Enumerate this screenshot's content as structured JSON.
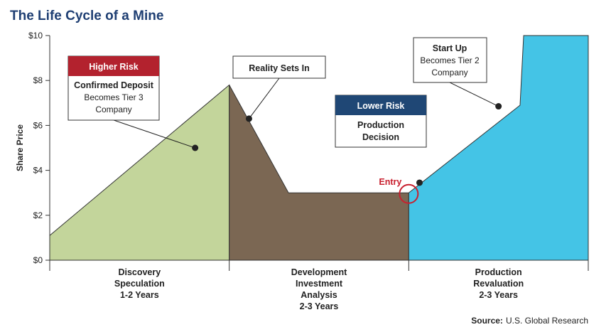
{
  "title": "The Life Cycle of a Mine",
  "source_label": "Source:",
  "source_text": "U.S. Global Research",
  "colors": {
    "title": "#1f3f73",
    "discovery": "#c3d59b",
    "development": "#7b6753",
    "production": "#44c4e6",
    "higher_risk": "#b3222e",
    "lower_risk": "#1f4775",
    "entry": "#c8202f"
  },
  "chart_data": {
    "type": "area",
    "title": "The Life Cycle of a Mine",
    "ylabel": "Share Price",
    "ylim": [
      0,
      10
    ],
    "yticks": [
      "$0",
      "$2",
      "$4",
      "$6",
      "$8",
      "$10"
    ],
    "grid": false,
    "phases": [
      {
        "name": "discovery",
        "lines": [
          "Discovery",
          "Speculation",
          "1-2 Years"
        ]
      },
      {
        "name": "development",
        "lines": [
          "Development",
          "Investment",
          "Analysis",
          "2-3 Years"
        ]
      },
      {
        "name": "production",
        "lines": [
          "Production",
          "Revaluation",
          "2-3 Years"
        ]
      }
    ],
    "series": [
      {
        "phase": "discovery",
        "points": [
          [
            0,
            1.1
          ],
          [
            1.0,
            7.8
          ]
        ]
      },
      {
        "phase": "development",
        "points": [
          [
            1.0,
            7.8
          ],
          [
            1.33,
            3.0
          ],
          [
            2.0,
            3.0
          ]
        ]
      },
      {
        "phase": "production",
        "points": [
          [
            2.0,
            3.0
          ],
          [
            2.62,
            6.9
          ],
          [
            2.64,
            10.0
          ],
          [
            3.0,
            10.0
          ]
        ]
      }
    ],
    "annotations": [
      {
        "name": "confirmed-deposit",
        "header": "Higher Risk",
        "lines": [
          "Confirmed Deposit",
          "Becomes Tier 3",
          "Company"
        ],
        "point": [
          0.81,
          5.0
        ]
      },
      {
        "name": "reality-sets-in",
        "lines": [
          "Reality Sets In"
        ],
        "point": [
          1.11,
          6.3
        ]
      },
      {
        "name": "production-decision",
        "header": "Lower Risk",
        "lines": [
          "Production",
          "Decision"
        ],
        "point": [
          2.06,
          3.45
        ]
      },
      {
        "name": "start-up",
        "lines": [
          "Start Up",
          "Becomes Tier 2",
          "Company"
        ],
        "point": [
          2.5,
          6.85
        ]
      }
    ],
    "entry": {
      "label": "Entry",
      "point": [
        2.0,
        2.95
      ]
    }
  }
}
